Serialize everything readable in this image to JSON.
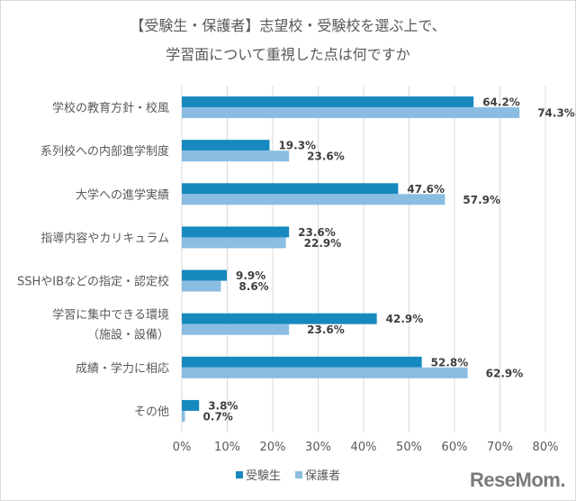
{
  "chart_data": {
    "type": "bar",
    "orientation": "horizontal",
    "title_lines": [
      "【受験生・保護者】志望校・受験校を選ぶ上で、",
      "学習面について重視した点は何ですか"
    ],
    "categories": [
      [
        "学校の教育方針・校風"
      ],
      [
        "系列校への内部進学制度"
      ],
      [
        "大学への進学実績"
      ],
      [
        "指導内容やカリキュラム"
      ],
      [
        "SSHやIBなどの指定・認定校"
      ],
      [
        "学習に集中できる環境",
        "（施設・設備）"
      ],
      [
        "成績・学力に相応"
      ],
      [
        "その他"
      ]
    ],
    "series": [
      {
        "name": "受験生",
        "color": "#1789be",
        "values": [
          64.2,
          19.3,
          47.6,
          23.6,
          9.9,
          42.9,
          52.8,
          3.8
        ]
      },
      {
        "name": "保護者",
        "color": "#8abde1",
        "values": [
          74.3,
          23.6,
          57.9,
          22.9,
          8.6,
          23.6,
          62.9,
          0.7
        ]
      }
    ],
    "xlim": [
      0,
      80
    ],
    "xticks": [
      "0%",
      "10%",
      "20%",
      "30%",
      "40%",
      "50%",
      "60%",
      "70%",
      "80%"
    ],
    "grid": true,
    "legend": "bottom",
    "value_suffix": "%"
  },
  "logo": "ReseMom"
}
